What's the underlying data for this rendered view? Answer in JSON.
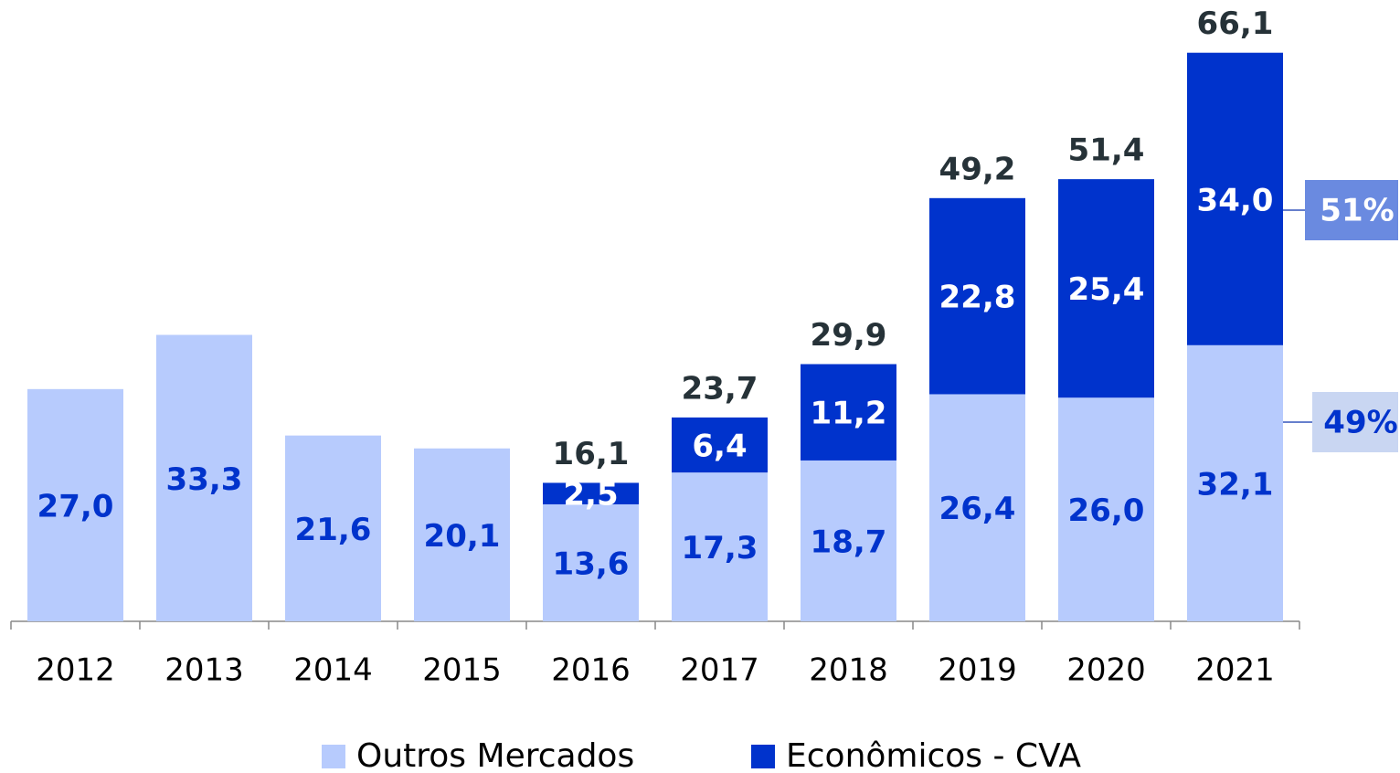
{
  "chart_data": {
    "type": "stacked_bar",
    "categories": [
      "2012",
      "2013",
      "2014",
      "2015",
      "2016",
      "2017",
      "2018",
      "2019",
      "2020",
      "2021"
    ],
    "series": [
      {
        "name": "Outros Mercados",
        "color": "#b7cbfd",
        "label_color": "#0033cc",
        "values": [
          27.0,
          33.3,
          21.6,
          20.1,
          13.6,
          17.3,
          18.7,
          26.4,
          26.0,
          32.1
        ],
        "value_labels": [
          "27,0",
          "33,3",
          "21,6",
          "20,1",
          "13,6",
          "17,3",
          "18,7",
          "26,4",
          "26,0",
          "32,1"
        ],
        "share": {
          "value": 49,
          "label": "49%"
        }
      },
      {
        "name": "Econômicos - CVA",
        "color": "#0033cc",
        "label_color": "#ffffff",
        "values": [
          null,
          null,
          null,
          null,
          2.5,
          6.4,
          11.2,
          22.8,
          25.4,
          34.0
        ],
        "value_labels": [
          null,
          null,
          null,
          null,
          "2,5",
          "6,4",
          "11,2",
          "22,8",
          "25,4",
          "34,0"
        ],
        "share": {
          "value": 51,
          "label": "51%"
        }
      }
    ],
    "totals": [
      null,
      null,
      null,
      null,
      16.1,
      23.7,
      29.9,
      49.2,
      51.4,
      66.1
    ],
    "total_labels": [
      null,
      null,
      null,
      null,
      "16,1",
      "23,7",
      "29,9",
      "49,2",
      "51,4",
      "66,1"
    ],
    "ylim": [
      0,
      70
    ]
  }
}
